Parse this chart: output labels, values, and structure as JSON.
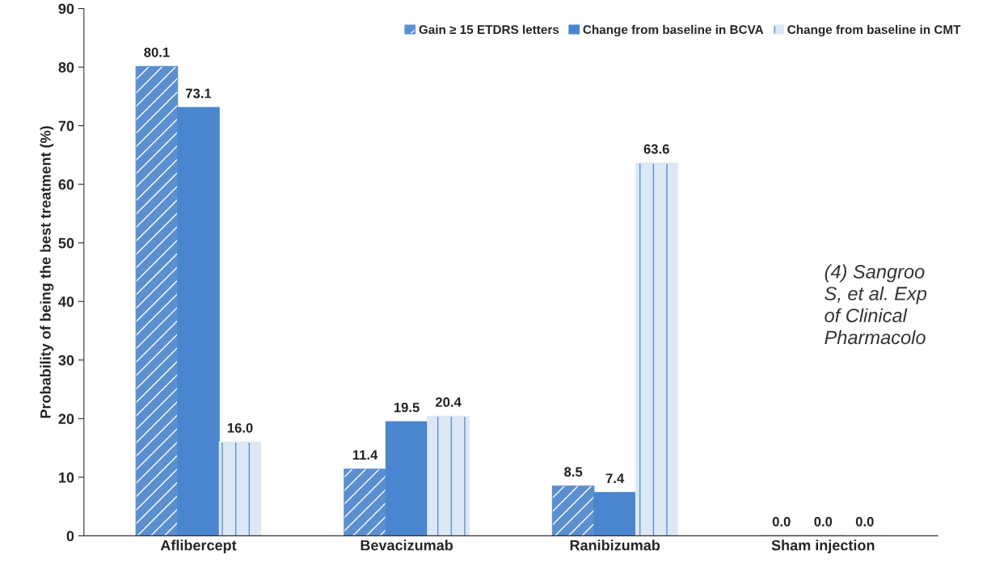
{
  "chart_data": {
    "type": "bar",
    "ylabel": "Probability of being the best treatment (%)",
    "categories": [
      "Aflibercept",
      "Bevacizumab",
      "Ranibizumab",
      "Sham injection"
    ],
    "series": [
      {
        "name": "Gain ≥ 15 ETDRS letters",
        "color": "#5b8fd0",
        "values": [
          80.1,
          11.4,
          8.5,
          0.0
        ],
        "value_labels": [
          "80.1",
          "11.4",
          "8.5",
          "0.0"
        ]
      },
      {
        "name": "Change from baseline in BCVA",
        "color": "#4a86cf",
        "values": [
          73.1,
          19.5,
          7.4,
          0.0
        ],
        "value_labels": [
          "73.1",
          "19.5",
          "7.4",
          "0.0"
        ]
      },
      {
        "name": "Change from baseline in CMT",
        "color": "#dce8f6",
        "values": [
          16.0,
          20.4,
          63.6,
          0.0
        ],
        "value_labels": [
          "16.0",
          "20.4",
          "63.6",
          "0.0"
        ]
      }
    ],
    "ylim": [
      0,
      90
    ],
    "yticks": [
      0,
      10,
      20,
      30,
      40,
      50,
      60,
      70,
      80,
      90
    ],
    "grid": false,
    "legend": "top right",
    "annotations": [
      "(4) Sangroo\nS, et al. Exp\nof Clinical\nPharmacolo"
    ]
  }
}
